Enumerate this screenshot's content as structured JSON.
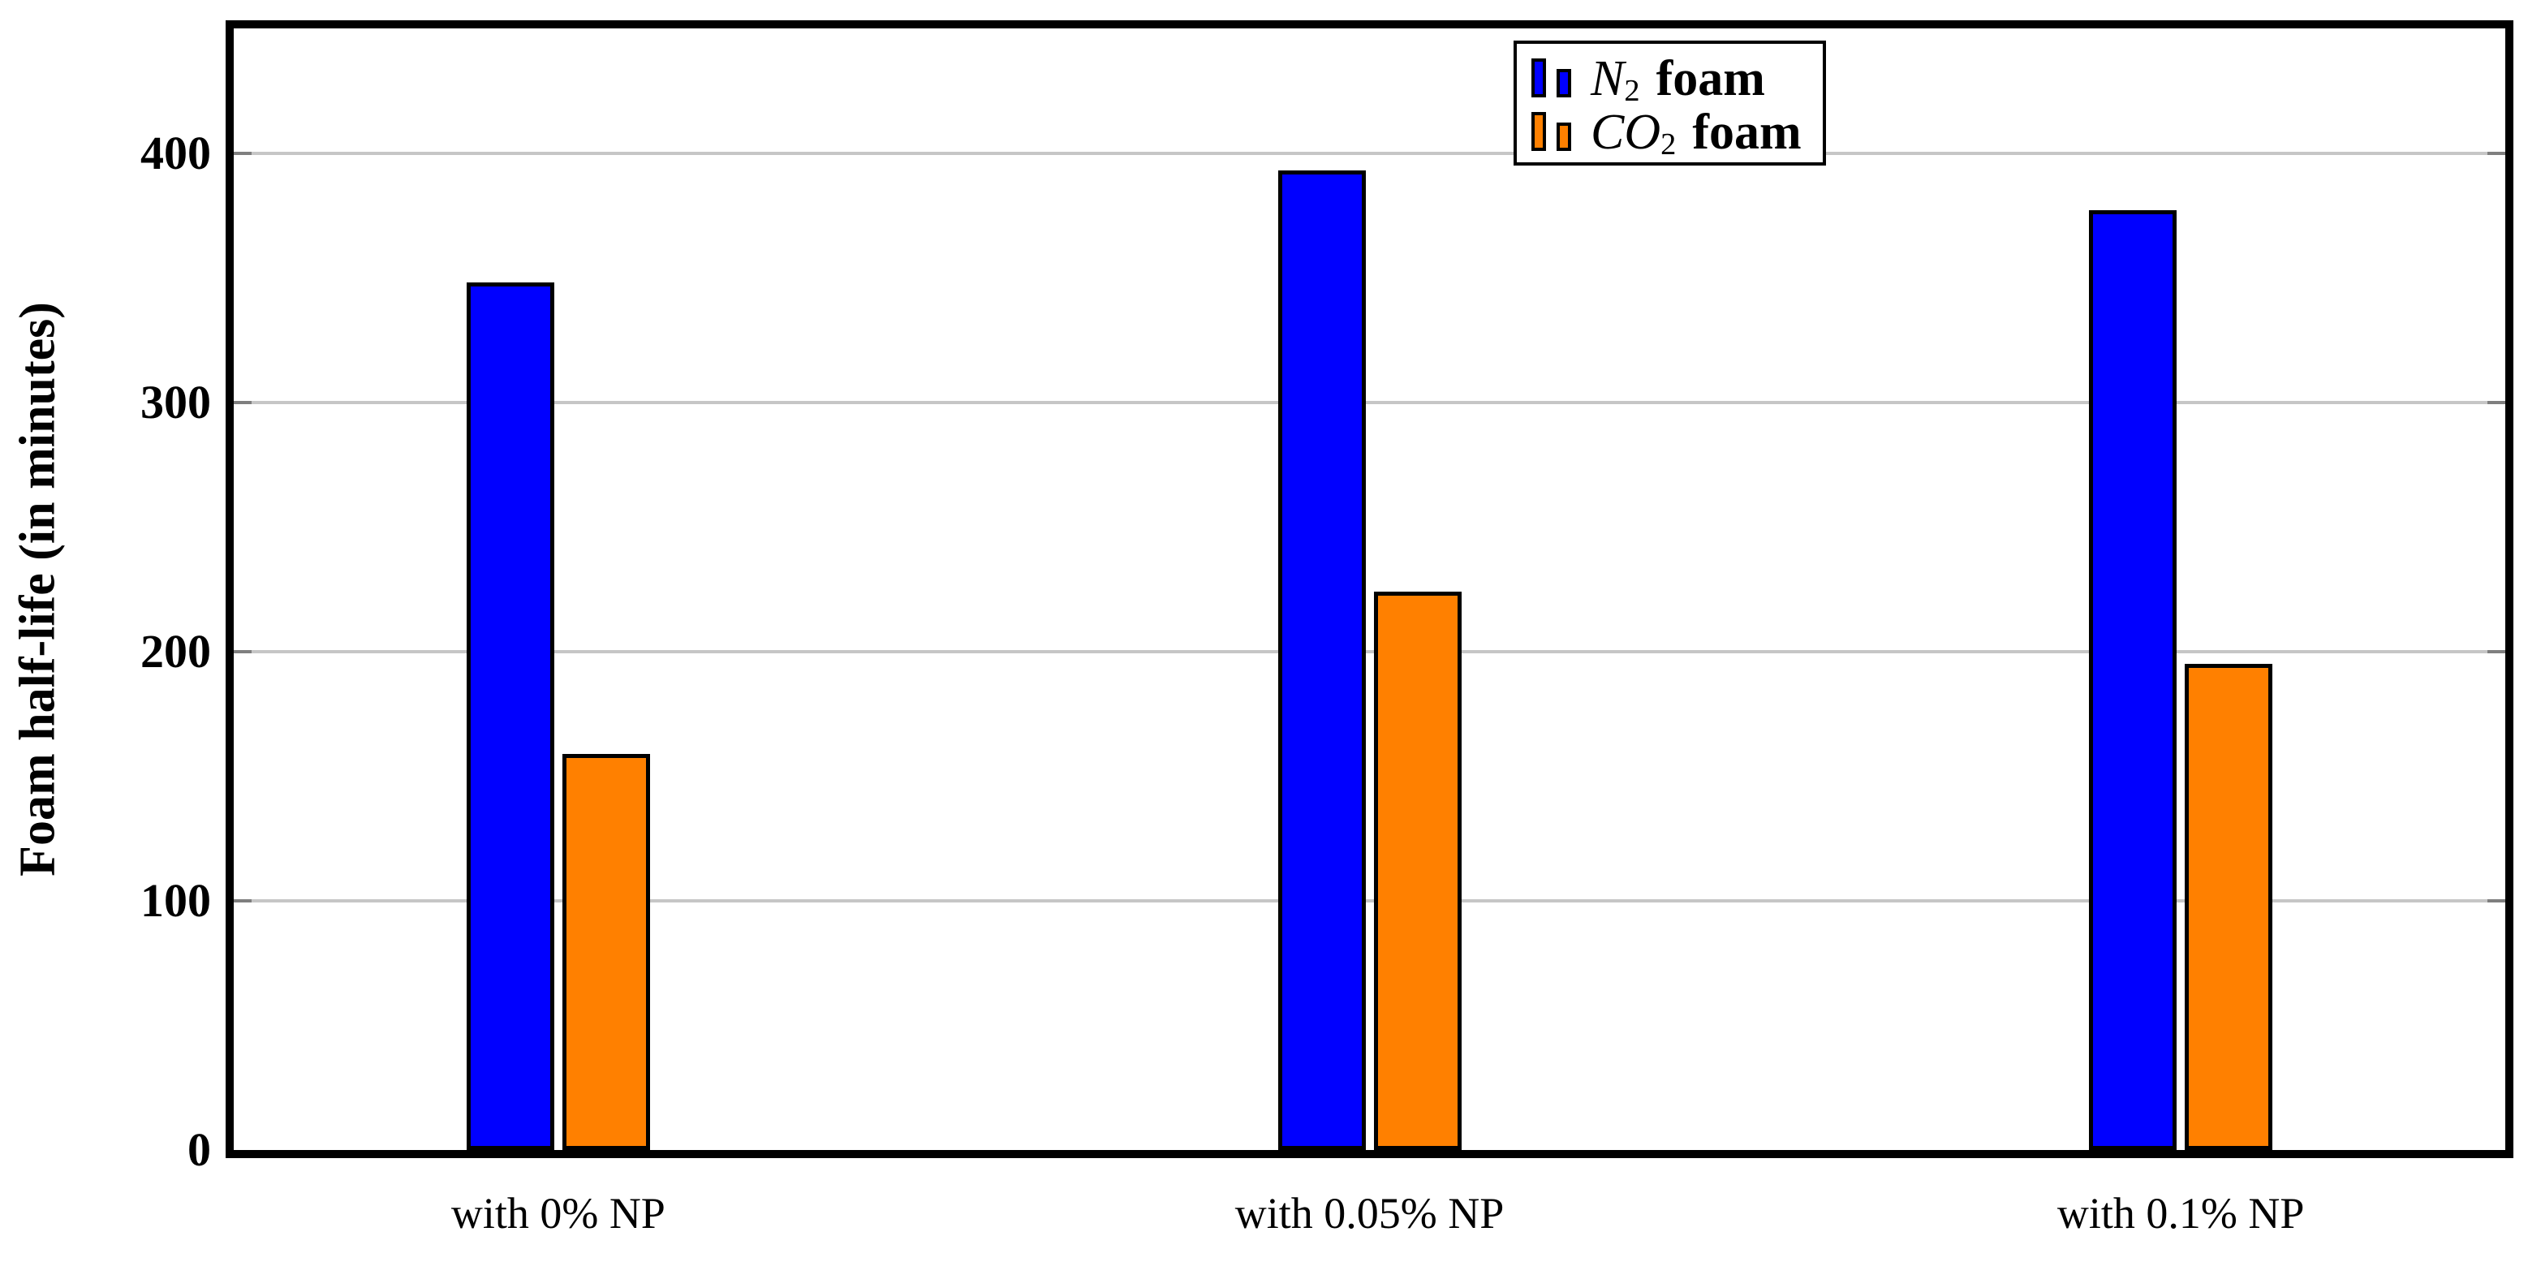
{
  "figure": {
    "background": "#ffffff"
  },
  "chart_data": {
    "type": "bar",
    "categories": [
      "with 0% NP",
      "with 0.05% NP",
      "with 0.1% NP"
    ],
    "series": [
      {
        "name": "N2 foam",
        "legend_math": "N",
        "legend_sub": "2",
        "legend_text": "foam",
        "color": "#0000ff",
        "values": [
          348,
          393,
          377
        ]
      },
      {
        "name": "CO2 foam",
        "legend_math": "CO",
        "legend_sub": "2",
        "legend_text": "foam",
        "color": "#ff8000",
        "values": [
          159,
          224,
          195
        ]
      }
    ],
    "xlabel": "",
    "ylabel": "Foam half-life (in minutes)",
    "ylim": [
      0,
      450
    ],
    "yticks": [
      0,
      100,
      200,
      300,
      400
    ],
    "grid": "horizontal-gridlines",
    "legend_position": "inside-top-center-right",
    "colors": {
      "bar_border": "#000000",
      "axis_frame": "#000000",
      "gridline": "#c6c6c6",
      "tick_mark": "#7f7f7f",
      "text": "#000000",
      "background": "#ffffff"
    }
  }
}
